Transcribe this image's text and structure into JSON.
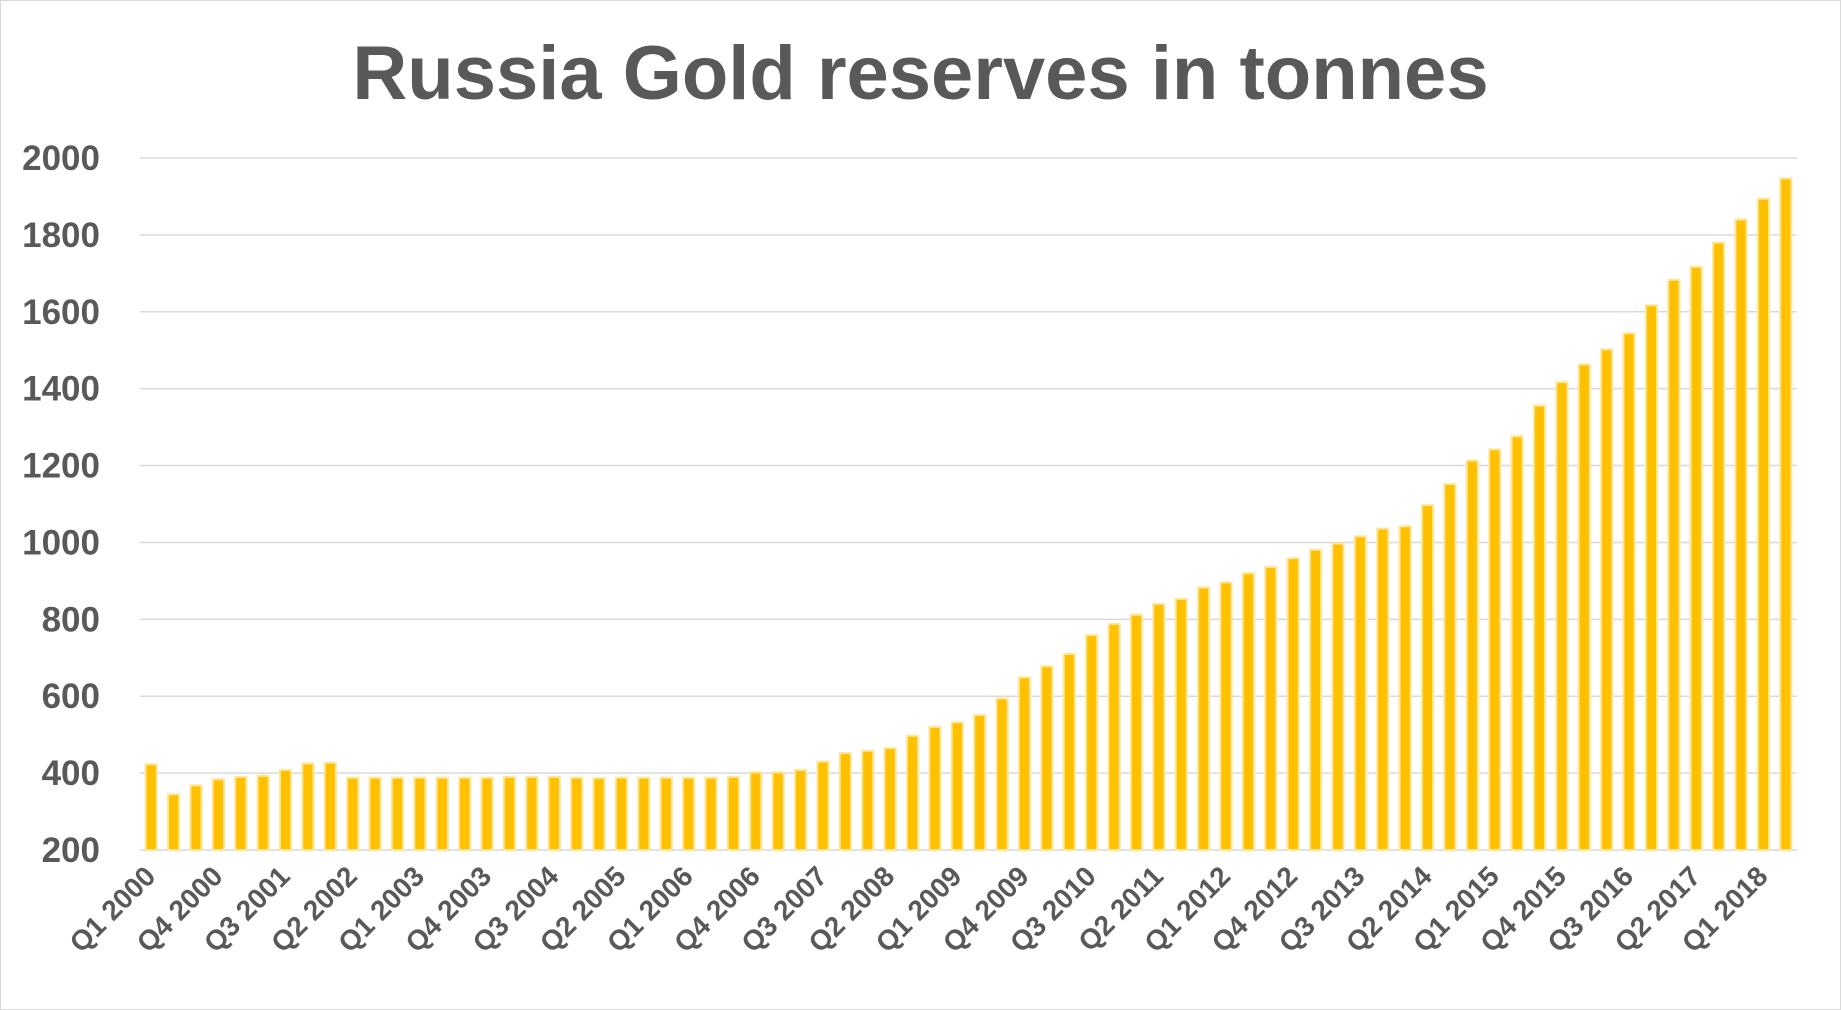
{
  "chart_data": {
    "type": "bar",
    "title": "Russia Gold reserves in tonnes",
    "xlabel": "",
    "ylabel": "",
    "ylim": [
      200,
      2000
    ],
    "yticks": [
      200,
      400,
      600,
      800,
      1000,
      1200,
      1400,
      1600,
      1800,
      2000
    ],
    "grid": true,
    "legend": "none",
    "bar_color": "#FFC000",
    "bar_edge_color": "#FFE699",
    "grid_color": "#d9d9d9",
    "text_color": "#595959",
    "categories": [
      "Q1 2000",
      "Q2 2000",
      "Q3 2000",
      "Q4 2000",
      "Q1 2001",
      "Q2 2001",
      "Q3 2001",
      "Q4 2001",
      "Q1 2002",
      "Q2 2002",
      "Q3 2002",
      "Q4 2002",
      "Q1 2003",
      "Q2 2003",
      "Q3 2003",
      "Q4 2003",
      "Q1 2004",
      "Q2 2004",
      "Q3 2004",
      "Q4 2004",
      "Q1 2005",
      "Q2 2005",
      "Q3 2005",
      "Q4 2005",
      "Q1 2006",
      "Q2 2006",
      "Q3 2006",
      "Q4 2006",
      "Q1 2007",
      "Q2 2007",
      "Q3 2007",
      "Q4 2007",
      "Q1 2008",
      "Q2 2008",
      "Q3 2008",
      "Q4 2008",
      "Q1 2009",
      "Q2 2009",
      "Q3 2009",
      "Q4 2009",
      "Q1 2010",
      "Q2 2010",
      "Q3 2010",
      "Q4 2010",
      "Q1 2011",
      "Q2 2011",
      "Q3 2011",
      "Q4 2011",
      "Q1 2012",
      "Q2 2012",
      "Q3 2012",
      "Q4 2012",
      "Q1 2013",
      "Q2 2013",
      "Q3 2013",
      "Q4 2013",
      "Q1 2014",
      "Q2 2014",
      "Q3 2014",
      "Q4 2014",
      "Q1 2015",
      "Q2 2015",
      "Q3 2015",
      "Q4 2015",
      "Q1 2016",
      "Q2 2016",
      "Q3 2016",
      "Q4 2016",
      "Q1 2017",
      "Q2 2017",
      "Q3 2017",
      "Q4 2017",
      "Q1 2018",
      "Q2 2018"
    ],
    "visible_tick_labels": [
      "Q1 2000",
      "Q4 2000",
      "Q3 2001",
      "Q2 2002",
      "Q1 2003",
      "Q4 2003",
      "Q3 2004",
      "Q2 2005",
      "Q1 2006",
      "Q4 2006",
      "Q3 2007",
      "Q2 2008",
      "Q1 2009",
      "Q4 2009",
      "Q3 2010",
      "Q2 2011",
      "Q1 2012",
      "Q4 2012",
      "Q3 2013",
      "Q2 2014",
      "Q1 2015",
      "Q4 2015",
      "Q3 2016",
      "Q2 2017",
      "Q1 2018"
    ],
    "values": [
      423,
      345,
      368,
      384,
      390,
      393,
      408,
      425,
      427,
      388,
      388,
      388,
      388,
      388,
      388,
      388,
      390,
      390,
      390,
      388,
      387,
      388,
      388,
      388,
      388,
      388,
      390,
      402,
      402,
      408,
      430,
      452,
      458,
      465,
      497,
      520,
      532,
      551,
      594,
      649,
      678,
      710,
      759,
      788,
      812,
      840,
      853,
      883,
      896,
      920,
      936,
      959,
      981,
      997,
      1016,
      1036,
      1042,
      1097,
      1152,
      1213,
      1242,
      1276,
      1356,
      1417,
      1463,
      1502,
      1544,
      1617,
      1683,
      1717,
      1780,
      1840,
      1894,
      1947
    ]
  }
}
